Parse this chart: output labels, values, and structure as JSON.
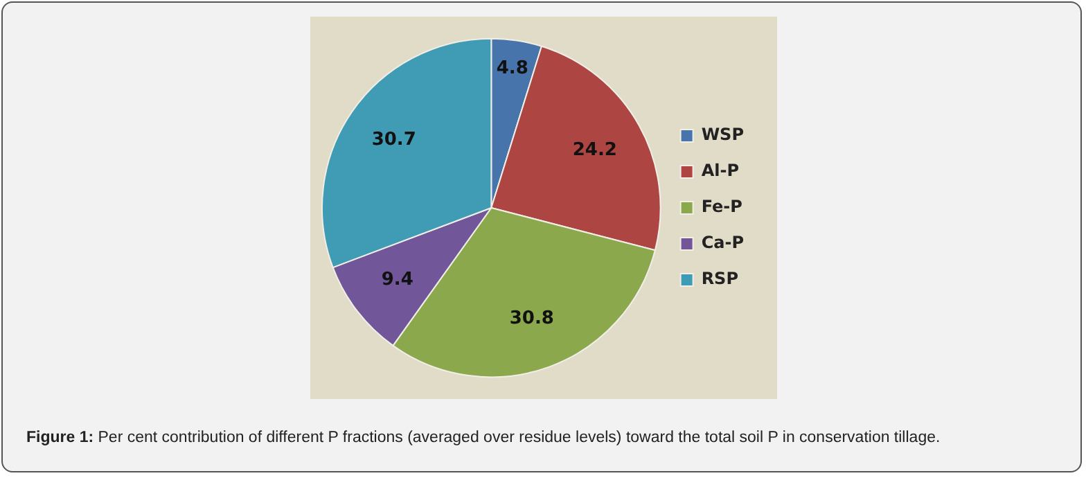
{
  "chart_data": {
    "type": "pie",
    "categories": [
      "WSP",
      "Al-P",
      "Fe-P",
      "Ca-P",
      "RSP"
    ],
    "values": [
      4.8,
      24.2,
      30.8,
      9.4,
      30.7
    ],
    "colors": [
      "#4674ab",
      "#ad4543",
      "#8ba84d",
      "#71579a",
      "#3f9cb4"
    ],
    "data_labels": true,
    "legend": "right",
    "annotations": [
      "Figure 1: Per cent contribution of different P fractions (averaged over residue levels) toward the total soil P in conservation tillage."
    ]
  }
}
